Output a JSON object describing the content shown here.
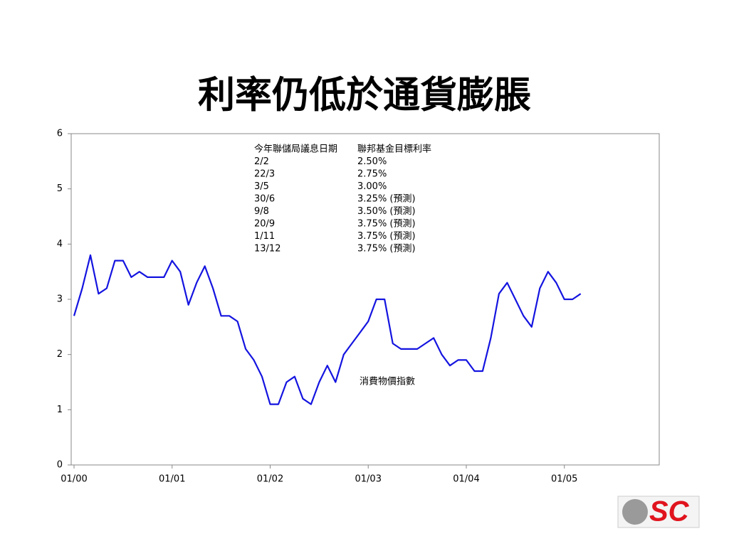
{
  "title": "利率仍低於通貨膨脹",
  "logo": "SC",
  "chart_data": {
    "type": "line",
    "x": [
      "2000-01",
      "2000-02",
      "2000-03",
      "2000-04",
      "2000-05",
      "2000-06",
      "2000-07",
      "2000-08",
      "2000-09",
      "2000-10",
      "2000-11",
      "2000-12",
      "2001-01",
      "2001-02",
      "2001-03",
      "2001-04",
      "2001-05",
      "2001-06",
      "2001-07",
      "2001-08",
      "2001-09",
      "2001-10",
      "2001-11",
      "2001-12",
      "2002-01",
      "2002-02",
      "2002-03",
      "2002-04",
      "2002-05",
      "2002-06",
      "2002-07",
      "2002-08",
      "2002-09",
      "2002-10",
      "2002-11",
      "2002-12",
      "2003-01",
      "2003-02",
      "2003-03",
      "2003-04",
      "2003-05",
      "2003-06",
      "2003-07",
      "2003-08",
      "2003-09",
      "2003-10",
      "2003-11",
      "2003-12",
      "2004-01",
      "2004-02",
      "2004-03",
      "2004-04",
      "2004-05",
      "2004-06",
      "2004-07",
      "2004-08",
      "2004-09",
      "2004-10",
      "2004-11",
      "2004-12",
      "2005-01",
      "2005-02",
      "2005-03"
    ],
    "series": [
      {
        "name": "消費物價指數",
        "color": "#1414e0",
        "values": [
          2.7,
          3.2,
          3.8,
          3.1,
          3.2,
          3.7,
          3.7,
          3.4,
          3.5,
          3.4,
          3.4,
          3.4,
          3.7,
          3.5,
          2.9,
          3.3,
          3.6,
          3.2,
          2.7,
          2.7,
          2.6,
          2.1,
          1.9,
          1.6,
          1.1,
          1.1,
          1.5,
          1.6,
          1.2,
          1.1,
          1.5,
          1.8,
          1.5,
          2.0,
          2.2,
          2.4,
          2.6,
          3.0,
          3.0,
          2.2,
          2.1,
          2.1,
          2.1,
          2.2,
          2.3,
          2.0,
          1.8,
          1.9,
          1.9,
          1.7,
          1.7,
          2.3,
          3.1,
          3.3,
          3.0,
          2.7,
          2.5,
          3.2,
          3.5,
          3.3,
          3.0,
          3.0,
          3.1
        ]
      }
    ],
    "xlim": [
      "2000-01",
      "2005-12"
    ],
    "xticks": [
      {
        "value": "2000-01",
        "label": "01/00"
      },
      {
        "value": "2001-01",
        "label": "01/01"
      },
      {
        "value": "2002-01",
        "label": "01/02"
      },
      {
        "value": "2003-01",
        "label": "01/03"
      },
      {
        "value": "2004-01",
        "label": "01/04"
      },
      {
        "value": "2005-01",
        "label": "01/05"
      }
    ],
    "ylim": [
      0,
      6
    ],
    "yticks": [
      0,
      1,
      2,
      3,
      4,
      5,
      6
    ],
    "grid": false,
    "annotation": {
      "header": [
        "今年聯儲局議息日期",
        "聯邦基金目標利率"
      ],
      "rows": [
        [
          "2/2",
          "2.50%"
        ],
        [
          "22/3",
          "2.75%"
        ],
        [
          "3/5",
          "3.00%"
        ],
        [
          "30/6",
          "3.25% (預測)"
        ],
        [
          "9/8",
          "3.50% (預測)"
        ],
        [
          "20/9",
          "3.75% (預測)"
        ],
        [
          "1/11",
          "3.75% (預測)"
        ],
        [
          "13/12",
          "3.75% (預測)"
        ]
      ]
    }
  }
}
